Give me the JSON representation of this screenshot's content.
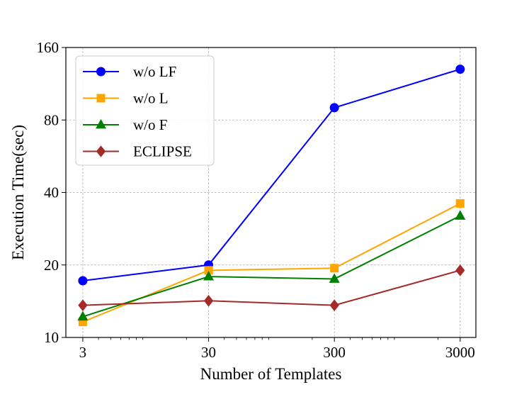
{
  "chart_data": {
    "type": "line",
    "title": "",
    "xlabel": "Number of Templates",
    "ylabel": "Execution Time(sec)",
    "x_scale": "log",
    "y_scale": "log",
    "x": [
      3,
      30,
      300,
      3000
    ],
    "x_tick_labels": [
      "3",
      "30",
      "300",
      "3000"
    ],
    "xlim": [
      2.2,
      4000
    ],
    "ylim": [
      10,
      160
    ],
    "y_ticks": [
      10,
      20,
      40,
      80,
      160
    ],
    "y_tick_labels": [
      "10",
      "20",
      "40",
      "80",
      "160"
    ],
    "grid": true,
    "legend_position": "top-left",
    "series": [
      {
        "name": "w/o LF",
        "color": "#0000ff",
        "marker": "circle",
        "values": [
          17.2,
          20.0,
          90.0,
          130.0
        ]
      },
      {
        "name": "w/o L",
        "color": "#ffa500",
        "marker": "square",
        "values": [
          11.6,
          19.0,
          19.4,
          36.0
        ]
      },
      {
        "name": "w/o F",
        "color": "#008000",
        "marker": "triangle",
        "values": [
          12.2,
          17.9,
          17.5,
          32.0
        ]
      },
      {
        "name": "ECLIPSE",
        "color": "#a52a2a",
        "marker": "diamond",
        "values": [
          13.6,
          14.2,
          13.6,
          19.0
        ]
      }
    ]
  }
}
